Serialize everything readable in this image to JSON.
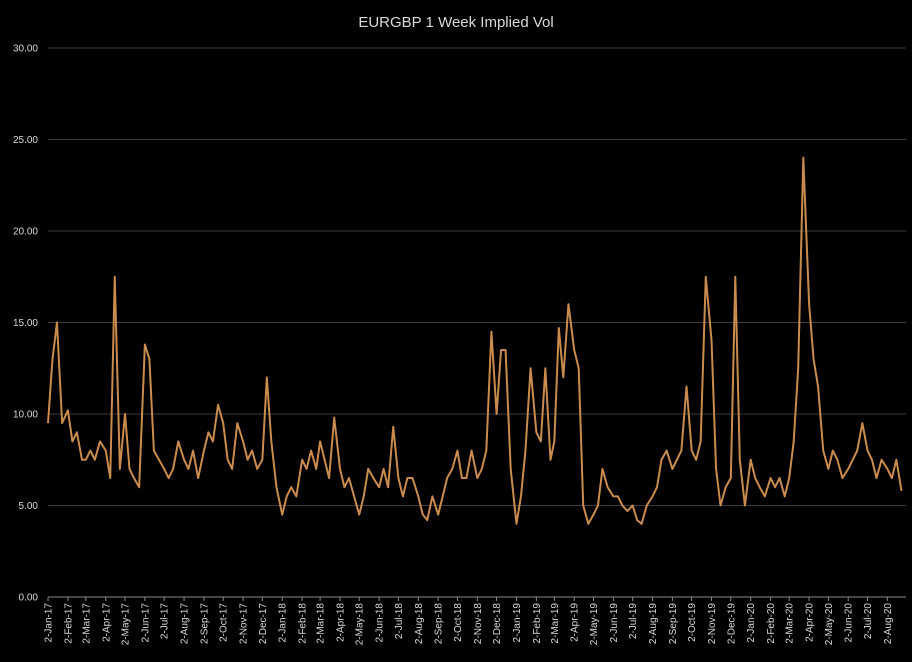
{
  "chart_data": {
    "type": "line",
    "title": "EURGBP 1 Week Implied Vol",
    "color": "#c98c4e",
    "grid": true,
    "ylim": [
      0,
      30
    ],
    "yticks": [
      {
        "value": 0,
        "label": "0.00"
      },
      {
        "value": 5,
        "label": "5.00"
      },
      {
        "value": 10,
        "label": "10.00"
      },
      {
        "value": 15,
        "label": "15.00"
      },
      {
        "value": 20,
        "label": "20.00"
      },
      {
        "value": 25,
        "label": "25.00"
      },
      {
        "value": 30,
        "label": "30.00"
      }
    ],
    "xlim": [
      "2017-01-02",
      "2020-08-31"
    ],
    "xticks": [
      {
        "value": "2017-01-02",
        "label": "2-Jan-17"
      },
      {
        "value": "2017-02-02",
        "label": "2-Feb-17"
      },
      {
        "value": "2017-03-02",
        "label": "2-Mar-17"
      },
      {
        "value": "2017-04-02",
        "label": "2-Apr-17"
      },
      {
        "value": "2017-05-02",
        "label": "2-May-17"
      },
      {
        "value": "2017-06-02",
        "label": "2-Jun-17"
      },
      {
        "value": "2017-07-02",
        "label": "2-Jul-17"
      },
      {
        "value": "2017-08-02",
        "label": "2-Aug-17"
      },
      {
        "value": "2017-09-02",
        "label": "2-Sep-17"
      },
      {
        "value": "2017-10-02",
        "label": "2-Oct-17"
      },
      {
        "value": "2017-11-02",
        "label": "2-Nov-17"
      },
      {
        "value": "2017-12-02",
        "label": "2-Dec-17"
      },
      {
        "value": "2018-01-02",
        "label": "2-Jan-18"
      },
      {
        "value": "2018-02-02",
        "label": "2-Feb-18"
      },
      {
        "value": "2018-03-02",
        "label": "2-Mar-18"
      },
      {
        "value": "2018-04-02",
        "label": "2-Apr-18"
      },
      {
        "value": "2018-05-02",
        "label": "2-May-18"
      },
      {
        "value": "2018-06-02",
        "label": "2-Jun-18"
      },
      {
        "value": "2018-07-02",
        "label": "2-Jul-18"
      },
      {
        "value": "2018-08-02",
        "label": "2-Aug-18"
      },
      {
        "value": "2018-09-02",
        "label": "2-Sep-18"
      },
      {
        "value": "2018-10-02",
        "label": "2-Oct-18"
      },
      {
        "value": "2018-11-02",
        "label": "2-Nov-18"
      },
      {
        "value": "2018-12-02",
        "label": "2-Dec-18"
      },
      {
        "value": "2019-01-02",
        "label": "2-Jan-19"
      },
      {
        "value": "2019-02-02",
        "label": "2-Feb-19"
      },
      {
        "value": "2019-03-02",
        "label": "2-Mar-19"
      },
      {
        "value": "2019-04-02",
        "label": "2-Apr-19"
      },
      {
        "value": "2019-05-02",
        "label": "2-May-19"
      },
      {
        "value": "2019-06-02",
        "label": "2-Jun-19"
      },
      {
        "value": "2019-07-02",
        "label": "2-Jul-19"
      },
      {
        "value": "2019-08-02",
        "label": "2-Aug-19"
      },
      {
        "value": "2019-09-02",
        "label": "2-Sep-19"
      },
      {
        "value": "2019-10-02",
        "label": "2-Oct-19"
      },
      {
        "value": "2019-11-02",
        "label": "2-Nov-19"
      },
      {
        "value": "2019-12-02",
        "label": "2-Dec-19"
      },
      {
        "value": "2020-01-02",
        "label": "2-Jan-20"
      },
      {
        "value": "2020-02-02",
        "label": "2-Feb-20"
      },
      {
        "value": "2020-03-02",
        "label": "2-Mar-20"
      },
      {
        "value": "2020-04-02",
        "label": "2-Apr-20"
      },
      {
        "value": "2020-05-02",
        "label": "2-May-20"
      },
      {
        "value": "2020-06-02",
        "label": "2-Jun-20"
      },
      {
        "value": "2020-07-02",
        "label": "2-Jul-20"
      },
      {
        "value": "2020-08-02",
        "label": "2-Aug-20"
      }
    ],
    "x": [
      "2017-01-02",
      "2017-01-09",
      "2017-01-16",
      "2017-01-24",
      "2017-02-02",
      "2017-02-09",
      "2017-02-16",
      "2017-02-24",
      "2017-03-02",
      "2017-03-09",
      "2017-03-16",
      "2017-03-24",
      "2017-04-02",
      "2017-04-09",
      "2017-04-16",
      "2017-04-24",
      "2017-05-02",
      "2017-05-09",
      "2017-05-16",
      "2017-05-24",
      "2017-06-02",
      "2017-06-09",
      "2017-06-16",
      "2017-06-24",
      "2017-07-02",
      "2017-07-09",
      "2017-07-16",
      "2017-07-24",
      "2017-08-02",
      "2017-08-09",
      "2017-08-16",
      "2017-08-24",
      "2017-09-02",
      "2017-09-09",
      "2017-09-16",
      "2017-09-24",
      "2017-10-02",
      "2017-10-09",
      "2017-10-16",
      "2017-10-24",
      "2017-11-02",
      "2017-11-09",
      "2017-11-16",
      "2017-11-24",
      "2017-12-02",
      "2017-12-09",
      "2017-12-16",
      "2017-12-24",
      "2018-01-02",
      "2018-01-09",
      "2018-01-16",
      "2018-01-24",
      "2018-02-02",
      "2018-02-09",
      "2018-02-16",
      "2018-02-24",
      "2018-03-02",
      "2018-03-09",
      "2018-03-16",
      "2018-03-24",
      "2018-04-02",
      "2018-04-09",
      "2018-04-16",
      "2018-04-24",
      "2018-05-02",
      "2018-05-09",
      "2018-05-16",
      "2018-05-24",
      "2018-06-02",
      "2018-06-09",
      "2018-06-16",
      "2018-06-24",
      "2018-07-02",
      "2018-07-09",
      "2018-07-16",
      "2018-07-24",
      "2018-08-02",
      "2018-08-09",
      "2018-08-16",
      "2018-08-24",
      "2018-09-02",
      "2018-09-09",
      "2018-09-16",
      "2018-09-24",
      "2018-10-02",
      "2018-10-09",
      "2018-10-16",
      "2018-10-24",
      "2018-11-02",
      "2018-11-09",
      "2018-11-16",
      "2018-11-24",
      "2018-12-02",
      "2018-12-09",
      "2018-12-16",
      "2018-12-24",
      "2019-01-02",
      "2019-01-09",
      "2019-01-16",
      "2019-01-24",
      "2019-02-02",
      "2019-02-09",
      "2019-02-16",
      "2019-02-24",
      "2019-03-02",
      "2019-03-09",
      "2019-03-16",
      "2019-03-24",
      "2019-04-02",
      "2019-04-09",
      "2019-04-16",
      "2019-04-24",
      "2019-05-02",
      "2019-05-09",
      "2019-05-16",
      "2019-05-24",
      "2019-06-02",
      "2019-06-09",
      "2019-06-16",
      "2019-06-24",
      "2019-07-02",
      "2019-07-09",
      "2019-07-16",
      "2019-07-24",
      "2019-08-02",
      "2019-08-09",
      "2019-08-16",
      "2019-08-24",
      "2019-09-02",
      "2019-09-09",
      "2019-09-16",
      "2019-09-24",
      "2019-10-02",
      "2019-10-09",
      "2019-10-16",
      "2019-10-24",
      "2019-11-02",
      "2019-11-09",
      "2019-11-16",
      "2019-11-24",
      "2019-12-02",
      "2019-12-09",
      "2019-12-16",
      "2019-12-24",
      "2020-01-02",
      "2020-01-09",
      "2020-01-16",
      "2020-01-24",
      "2020-02-02",
      "2020-02-09",
      "2020-02-16",
      "2020-02-24",
      "2020-03-02",
      "2020-03-09",
      "2020-03-16",
      "2020-03-24",
      "2020-04-02",
      "2020-04-09",
      "2020-04-16",
      "2020-04-24",
      "2020-05-02",
      "2020-05-09",
      "2020-05-16",
      "2020-05-24",
      "2020-06-02",
      "2020-06-09",
      "2020-06-16",
      "2020-06-24",
      "2020-07-02",
      "2020-07-09",
      "2020-07-16",
      "2020-07-24",
      "2020-08-02",
      "2020-08-09",
      "2020-08-16",
      "2020-08-24"
    ],
    "values": [
      9.5,
      13,
      15,
      9.5,
      10.2,
      8.5,
      9,
      7.5,
      7.5,
      8,
      7.5,
      8.5,
      8,
      6.5,
      17.5,
      7,
      10,
      7,
      6.5,
      6,
      13.8,
      13,
      8,
      7.5,
      7,
      6.5,
      7,
      8.5,
      7.5,
      7,
      8,
      6.5,
      8,
      9,
      8.5,
      10.5,
      9.5,
      7.5,
      7,
      9.5,
      8.5,
      7.5,
      8,
      7,
      7.5,
      12,
      8.5,
      6,
      4.5,
      5.5,
      6,
      5.5,
      7.5,
      7,
      8,
      7,
      8.5,
      7.5,
      6.5,
      9.8,
      7,
      6,
      6.5,
      5.5,
      4.5,
      5.5,
      7,
      6.5,
      6,
      7,
      6,
      9.3,
      6.5,
      5.5,
      6.5,
      6.5,
      5.5,
      4.5,
      4.2,
      5.5,
      4.5,
      5.5,
      6.5,
      7,
      8,
      6.5,
      6.5,
      8,
      6.5,
      7,
      8,
      14.5,
      10,
      13.5,
      13.5,
      7,
      4,
      5.5,
      8,
      12.5,
      9,
      8.5,
      12.5,
      7.5,
      8.5,
      14.7,
      12,
      16,
      13.5,
      12.5,
      5,
      4,
      4.5,
      5,
      7,
      6,
      5.5,
      5.5,
      5,
      4.7,
      5,
      4.2,
      4,
      5,
      5.5,
      6,
      7.5,
      8,
      7,
      7.5,
      8,
      11.5,
      8,
      7.5,
      8.5,
      17.5,
      14,
      7,
      5,
      6,
      6.5,
      17.5,
      7.5,
      5,
      7.5,
      6.5,
      6,
      5.5,
      6.5,
      6,
      6.5,
      5.5,
      6.5,
      8.5,
      12.5,
      24,
      16,
      13,
      11.5,
      8,
      7,
      8,
      7.5,
      6.5,
      7,
      7.5,
      8,
      9.5,
      8,
      7.5,
      6.5,
      7.5,
      7,
      6.5,
      7.5,
      5.8
    ]
  }
}
